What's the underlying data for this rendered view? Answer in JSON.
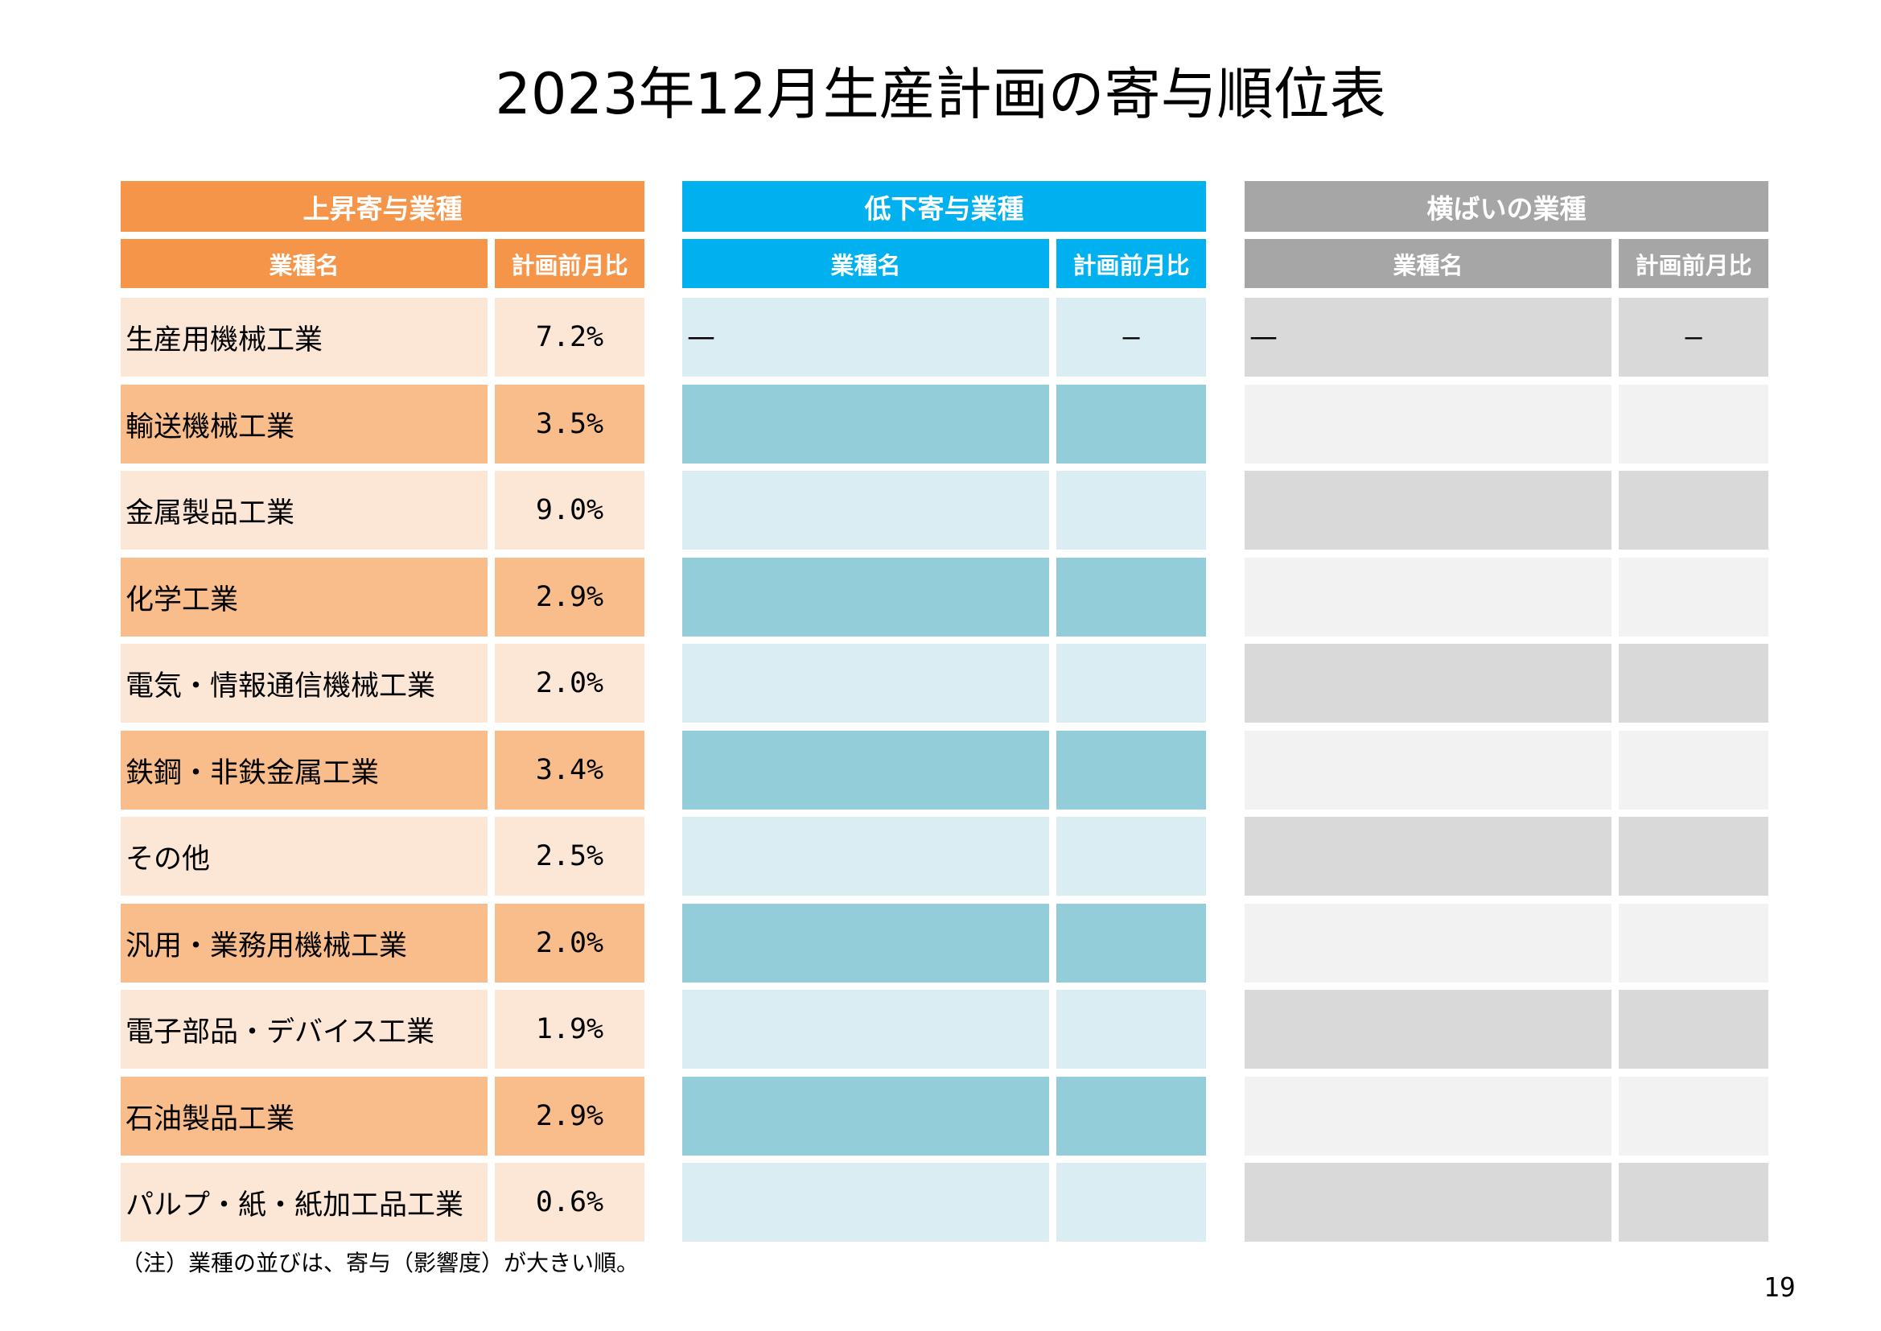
{
  "title": "2023年12月生産計画の寄与順位表",
  "colors": {
    "rise_header": "#f5954a",
    "rise_row_light": "#fce6d6",
    "rise_row_dark": "#f9bd8c",
    "fall_header": "#00b0ef",
    "fall_row_light": "#daedf3",
    "fall_row_dark": "#93cdda",
    "flat_header": "#a6a6a6",
    "flat_row_light": "#d9d9d9",
    "flat_row_dark": "#f2f2f2"
  },
  "panels": {
    "rise": {
      "title": "上昇寄与業種",
      "col_name": "業種名",
      "col_value": "計画前月比",
      "rows": [
        {
          "name": "生産用機械工業",
          "value": "7.2%"
        },
        {
          "name": "輸送機械工業",
          "value": "3.5%"
        },
        {
          "name": "金属製品工業",
          "value": "9.0%"
        },
        {
          "name": "化学工業",
          "value": "2.9%"
        },
        {
          "name": "電気・情報通信機械工業",
          "value": "2.0%"
        },
        {
          "name": "鉄鋼・非鉄金属工業",
          "value": "3.4%"
        },
        {
          "name": "その他",
          "value": "2.5%"
        },
        {
          "name": "汎用・業務用機械工業",
          "value": "2.0%"
        },
        {
          "name": "電子部品・デバイス工業",
          "value": "1.9%"
        },
        {
          "name": "石油製品工業",
          "value": "2.9%"
        },
        {
          "name": "パルプ・紙・紙加工品工業",
          "value": "0.6%"
        }
      ]
    },
    "fall": {
      "title": "低下寄与業種",
      "col_name": "業種名",
      "col_value": "計画前月比",
      "rows": [
        {
          "name": "—",
          "value": "—"
        },
        {
          "name": "",
          "value": ""
        },
        {
          "name": "",
          "value": ""
        },
        {
          "name": "",
          "value": ""
        },
        {
          "name": "",
          "value": ""
        },
        {
          "name": "",
          "value": ""
        },
        {
          "name": "",
          "value": ""
        },
        {
          "name": "",
          "value": ""
        },
        {
          "name": "",
          "value": ""
        },
        {
          "name": "",
          "value": ""
        },
        {
          "name": "",
          "value": ""
        }
      ]
    },
    "flat": {
      "title": "横ばいの業種",
      "col_name": "業種名",
      "col_value": "計画前月比",
      "rows": [
        {
          "name": "—",
          "value": "—"
        },
        {
          "name": "",
          "value": ""
        },
        {
          "name": "",
          "value": ""
        },
        {
          "name": "",
          "value": ""
        },
        {
          "name": "",
          "value": ""
        },
        {
          "name": "",
          "value": ""
        },
        {
          "name": "",
          "value": ""
        },
        {
          "name": "",
          "value": ""
        },
        {
          "name": "",
          "value": ""
        },
        {
          "name": "",
          "value": ""
        },
        {
          "name": "",
          "value": ""
        }
      ]
    }
  },
  "note": "（注）業種の並びは、寄与（影響度）が大きい順。",
  "page_number": "19"
}
